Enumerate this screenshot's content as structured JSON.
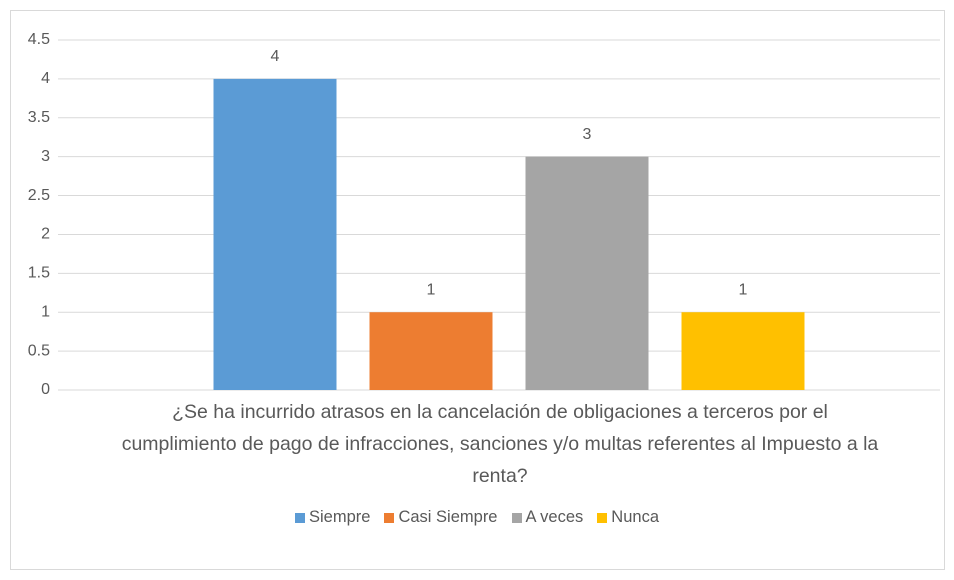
{
  "chart_data": {
    "type": "bar",
    "categories": [
      "¿Se ha incurrido atrasos en la cancelación de obligaciones a terceros por el cumplimiento de pago de infracciones, sanciones y/o multas referentes al Impuesto a la renta?"
    ],
    "series": [
      {
        "name": "Siempre",
        "color": "#5b9bd5",
        "values": [
          4
        ]
      },
      {
        "name": "Casi Siempre",
        "color": "#ed7d31",
        "values": [
          1
        ]
      },
      {
        "name": "A veces",
        "color": "#a5a5a5",
        "values": [
          3
        ]
      },
      {
        "name": "Nunca",
        "color": "#ffc000",
        "values": [
          1
        ]
      }
    ],
    "ylim": [
      0,
      4.5
    ],
    "yticks": [
      0,
      0.5,
      1,
      1.5,
      2,
      2.5,
      3,
      3.5,
      4,
      4.5
    ],
    "grid": true,
    "legend": "bottom",
    "data_labels": true
  }
}
